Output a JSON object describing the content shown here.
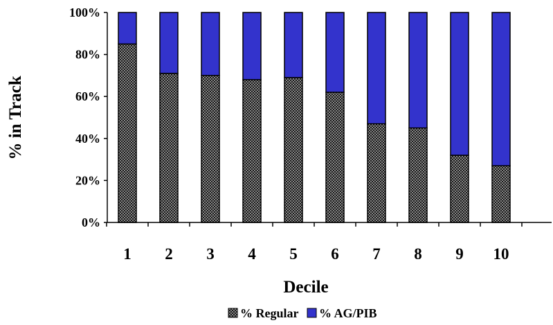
{
  "chart_data": {
    "type": "bar",
    "stacked": true,
    "percent": true,
    "title": "",
    "xlabel": "Decile",
    "ylabel": "% in Track",
    "categories": [
      "1",
      "2",
      "3",
      "4",
      "5",
      "6",
      "7",
      "8",
      "9",
      "10"
    ],
    "series": [
      {
        "name": "% Regular",
        "values": [
          85,
          71,
          70,
          68,
          69,
          62,
          47,
          45,
          32,
          27
        ]
      },
      {
        "name": "% AG/PIB",
        "values": [
          15,
          29,
          30,
          32,
          31,
          38,
          53,
          55,
          68,
          73
        ]
      }
    ],
    "ylim": [
      0,
      100
    ],
    "yticks": [
      "0%",
      "20%",
      "40%",
      "60%",
      "80%",
      "100%"
    ],
    "grid": false,
    "legend_position": "bottom",
    "colors": {
      "regular_fill": "#808080",
      "regular_pattern": "crosshatch",
      "agpib": "#3333cc",
      "outline": "#000000"
    }
  }
}
